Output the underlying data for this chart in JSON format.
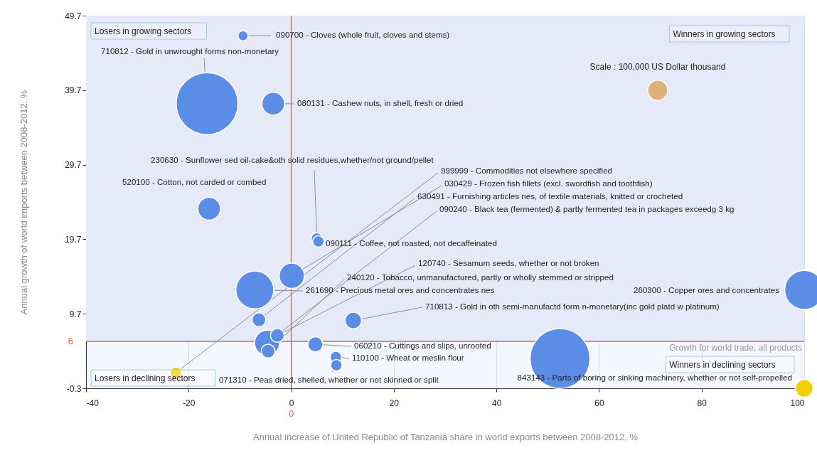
{
  "chart_data": {
    "type": "bubble",
    "xlabel": "Annual increase of United Republic of Tanzania share in world exports between 2008-2012, %",
    "ylabel": "Annual growth of world imports between 2008-2012, %",
    "xlim": [
      -40,
      100
    ],
    "xticks": [
      -40,
      -20,
      0,
      20,
      40,
      60,
      80,
      100
    ],
    "ylim": [
      -0.3,
      49.7
    ],
    "yticks": [
      -0.3,
      9.7,
      19.7,
      29.7,
      39.7,
      49.7
    ],
    "grid": true,
    "size_legend": [
      {
        "value": 100000,
        "label": "Scale : 100,000 US Dollar thousand"
      }
    ],
    "ref_lines": [
      {
        "axis": "x",
        "value": 0,
        "label": "0",
        "color": "#e8602c"
      },
      {
        "axis": "y",
        "value": 6,
        "label": "6",
        "color": "#e8602c"
      }
    ],
    "bands": [
      {
        "axis": "y",
        "from": 6,
        "to": 49.7,
        "label": null,
        "color": "#e6eaf8"
      }
    ],
    "annotations": [
      "Losers in growing sectors",
      "Winners in growing sectors",
      "Losers in declining sectors",
      "Winners in declining sectors",
      {
        "text": "Growth for world trade, all products",
        "x": 100,
        "y": 6
      }
    ],
    "series": [
      {
        "name": "710812 - Gold in unwrought forms non-monetary",
        "color": "#5b8ce6",
        "x": [
          -16.4
        ],
        "values": [
          37.9
        ],
        "sizes": [
          940000
        ]
      },
      {
        "name": null,
        "color": "#5b8ce6",
        "x": [
          52.4
        ],
        "values": [
          3.7
        ],
        "sizes": [
          880000
        ]
      },
      {
        "name": "260300 - Copper ores and concentrates",
        "color": "#5b8ce6",
        "x": [
          100
        ],
        "values": [
          12.9
        ],
        "sizes": [
          375000
        ]
      },
      {
        "name": "261690 - Precious metal ores and concentrates nes",
        "color": "#5b8ce6",
        "x": [
          -7.1
        ],
        "values": [
          12.9
        ],
        "sizes": [
          352000
        ]
      },
      {
        "name": "030429 - Frozen fish fillets (excl. swordfish and toothfish)",
        "color": "#5b8ce6",
        "x": [
          0.1
        ],
        "values": [
          14.8
        ],
        "sizes": [
          156000
        ]
      },
      {
        "name": "090240 - Black tea (fermented) & partly fermented tea in packages exceedg 3 kg",
        "color": "#5b8ce6",
        "x": [
          -4.7
        ],
        "values": [
          5.8
        ],
        "sizes": [
          156000
        ]
      },
      {
        "name": "080131 - Cashew nuts, in shell, fresh or dried",
        "color": "#5b8ce6",
        "x": [
          -3.5
        ],
        "values": [
          37.9
        ],
        "sizes": [
          127000
        ]
      },
      {
        "name": "520100 - Cotton, not carded or combed",
        "color": "#5b8ce6",
        "x": [
          -16.0
        ],
        "values": [
          23.8
        ],
        "sizes": [
          127000
        ]
      },
      {
        "name": "710813 - Gold in oth semi-manufactd form n-monetary(inc gold platd w platinum)",
        "color": "#5b8ce6",
        "x": [
          12.1
        ],
        "values": [
          8.8
        ],
        "sizes": [
          66000
        ]
      },
      {
        "name": "060210 - Cuttings and slips, unrooted",
        "color": "#5b8ce6",
        "x": [
          4.7
        ],
        "values": [
          5.6
        ],
        "sizes": [
          56000
        ]
      },
      {
        "name": "843143 - Parts of boring or sinking machinery, whether or not self-propelled",
        "color": "#f5d000",
        "x": [
          100
        ],
        "values": [
          -0.3
        ],
        "sizes": [
          77000
        ]
      },
      {
        "name": "630491 - Furnishing articles nes, of textile materials, knitted or crocheted",
        "color": "#5b8ce6",
        "x": [
          -6.3
        ],
        "values": [
          8.9
        ],
        "sizes": [
          47000
        ]
      },
      {
        "name": "120740 - Sesamum seeds, whether or not broken",
        "color": "#5b8ce6",
        "x": [
          -2.7
        ],
        "values": [
          6.8
        ],
        "sizes": [
          47000
        ]
      },
      {
        "name": "240120 - Tobacco, unmanufactured, partly or wholly stemmed or stripped",
        "color": "#5b8ce6",
        "x": [
          -4.5
        ],
        "values": [
          4.7
        ],
        "sizes": [
          47000
        ]
      },
      {
        "name": "090700 - Cloves (whole fruit, cloves and stems)",
        "color": "#5b8ce6",
        "x": [
          -9.4
        ],
        "values": [
          47.0
        ],
        "sizes": [
          25000
        ]
      },
      {
        "name": "230630 - Sunflower sed oil-cake&oth solid residues,whether/not ground/pellet",
        "color": "#5b8ce6",
        "x": [
          5.0
        ],
        "values": [
          19.8
        ],
        "sizes": [
          32000
        ]
      },
      {
        "name": "090111 - Coffee, not roasted, not decaffeinated",
        "color": "#5b8ce6",
        "x": [
          5.3
        ],
        "values": [
          19.4
        ],
        "sizes": [
          32000
        ]
      },
      {
        "name": "110100 - Wheat or meslin flour",
        "color": "#5b8ce6",
        "x": [
          8.7
        ],
        "values": [
          3.9
        ],
        "sizes": [
          32000
        ]
      },
      {
        "name": "071310 - Peas dried, shelled, whether or not skinned or split",
        "color": "#5b8ce6",
        "x": [
          8.8
        ],
        "values": [
          2.8
        ],
        "sizes": [
          32000
        ]
      },
      {
        "name": "999999 - Commodities not elsewhere specified",
        "color": "#f5d000",
        "x": [
          -22.5
        ],
        "values": [
          1.8
        ],
        "sizes": [
          32000
        ]
      }
    ]
  }
}
